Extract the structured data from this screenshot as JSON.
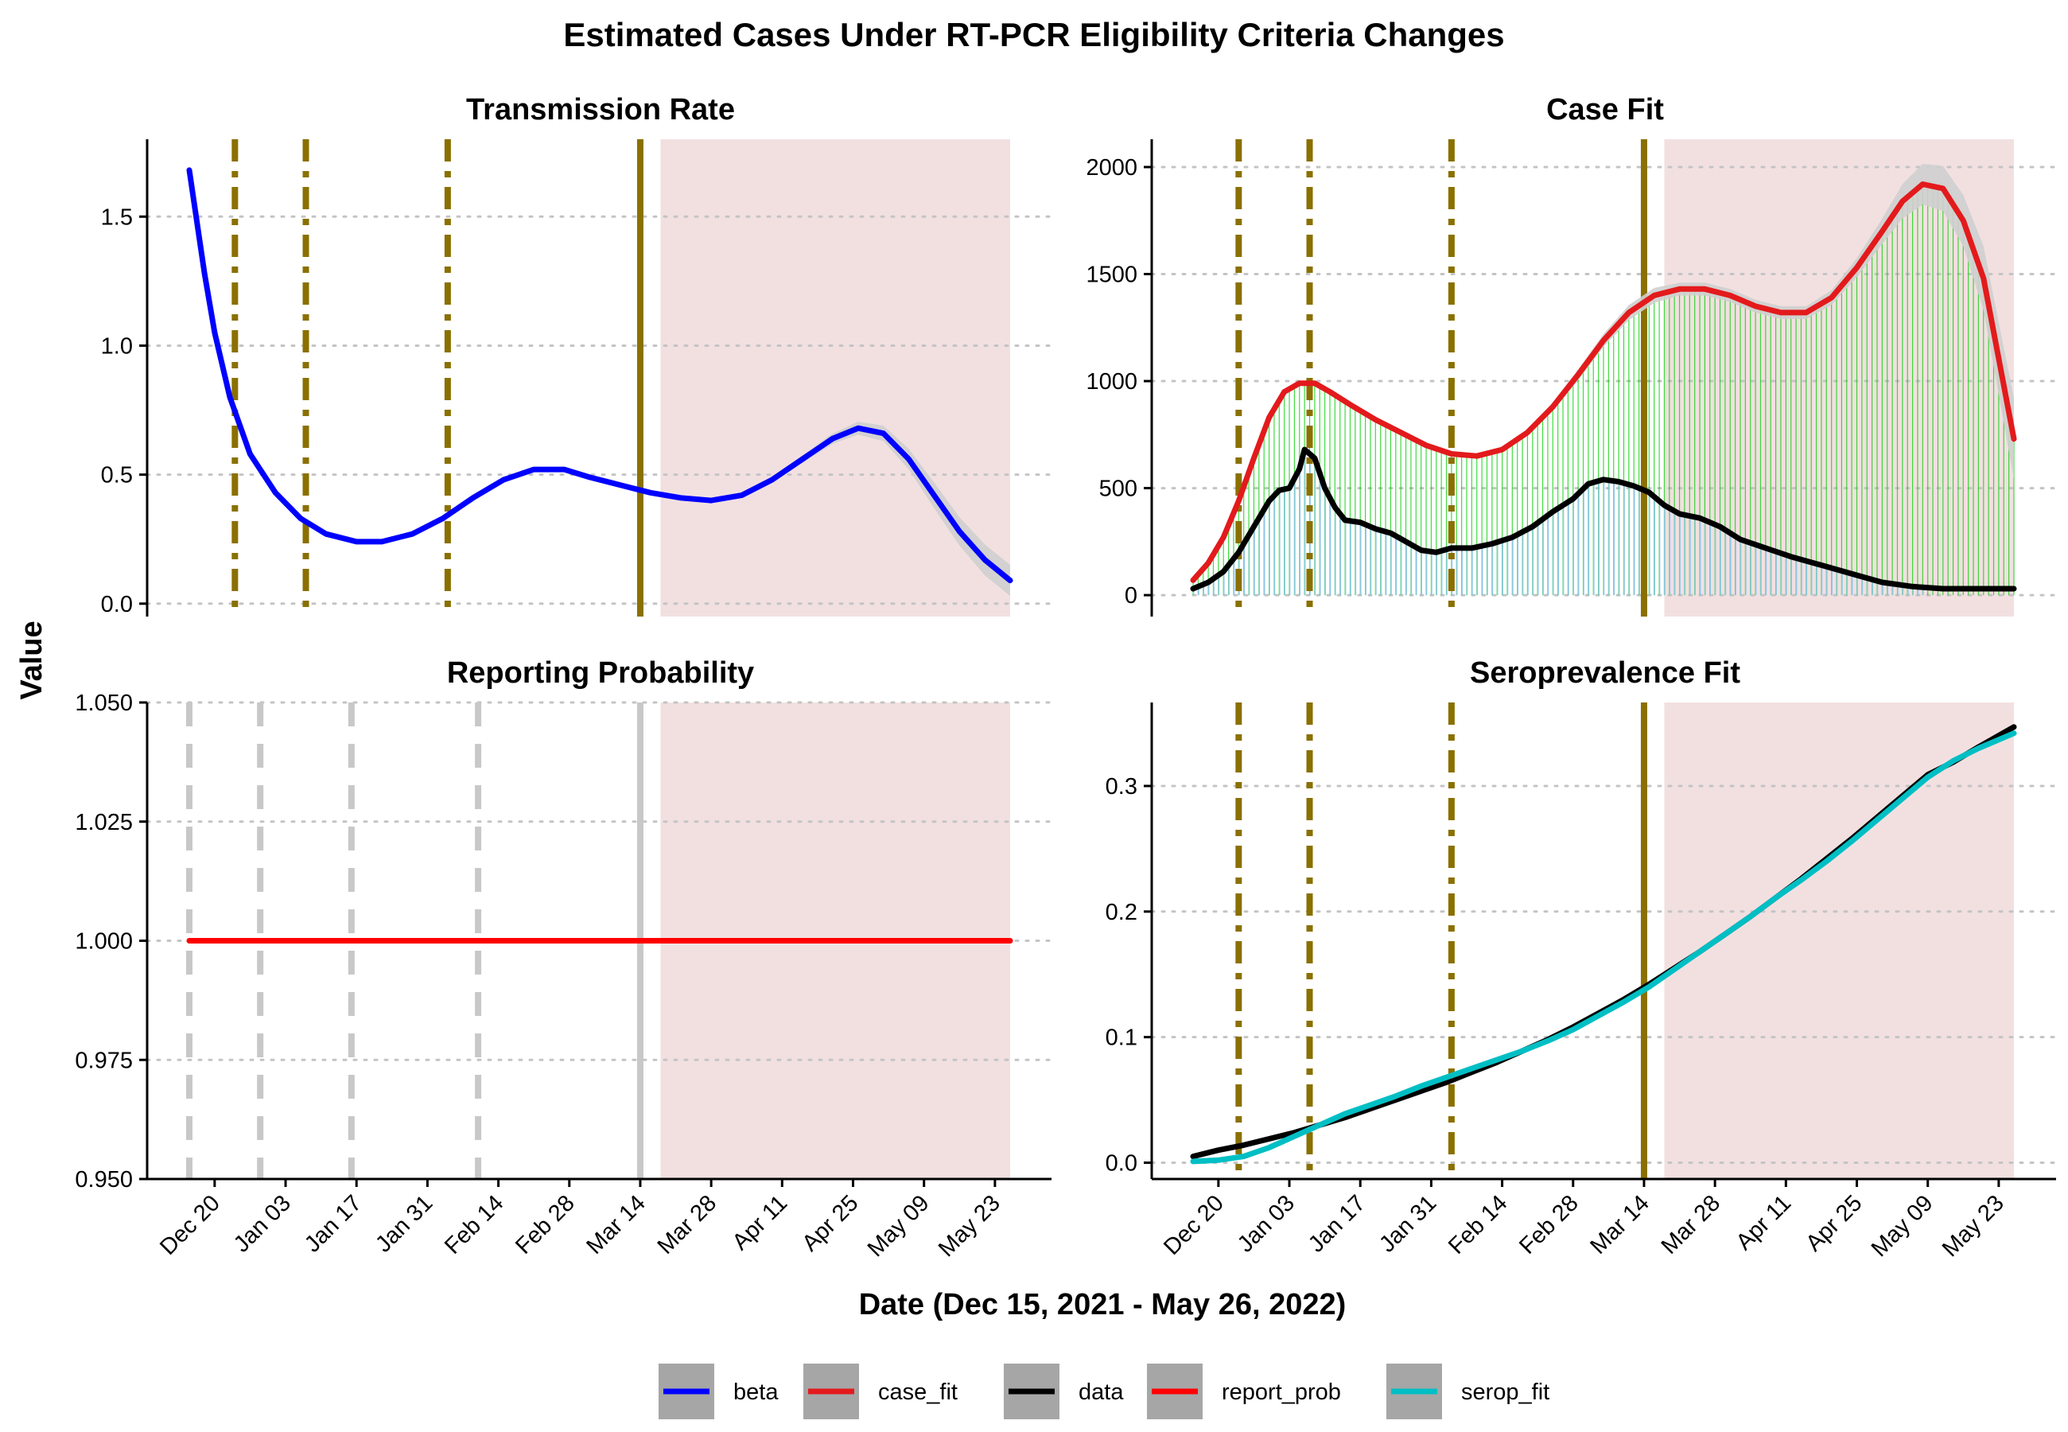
{
  "title": "Estimated Cases Under RT-PCR Eligibility Criteria Changes",
  "xlabel": "Date (Dec 15, 2021 - May 26, 2022)",
  "ylabel": "Value",
  "x_range": [
    "2021-12-15",
    "2022-05-26"
  ],
  "x_ticks": [
    "Dec 20",
    "Jan 03",
    "Jan 17",
    "Jan 31",
    "Feb 14",
    "Feb 28",
    "Mar 14",
    "Mar 28",
    "Apr 11",
    "Apr 25",
    "May 09",
    "May 23"
  ],
  "x_tick_dates": [
    "2021-12-20",
    "2022-01-03",
    "2022-01-17",
    "2022-01-31",
    "2022-02-14",
    "2022-02-28",
    "2022-03-14",
    "2022-03-28",
    "2022-04-11",
    "2022-04-25",
    "2022-05-09",
    "2022-05-23"
  ],
  "shaded_region": {
    "start": "2022-03-18",
    "end": "2022-05-26",
    "color": "#f2e0e1"
  },
  "policy_lines": {
    "dashdot_dates": [
      "2021-12-24",
      "2022-01-07",
      "2022-02-04"
    ],
    "solid_date": "2022-03-14",
    "color": "#8a7000"
  },
  "legend": [
    {
      "label": "beta",
      "color": "#0000ff"
    },
    {
      "label": "case_fit",
      "color": "#e31a1c"
    },
    {
      "label": "data",
      "color": "#000000"
    },
    {
      "label": "report_prob",
      "color": "#ff0000"
    },
    {
      "label": "serop_fit",
      "color": "#00bfc4"
    }
  ],
  "chart_data": [
    {
      "type": "line",
      "panel_title": "Transmission Rate",
      "series_name": "beta",
      "ylim": [
        -0.05,
        1.8
      ],
      "y_ticks": [
        "0.0",
        "0.5",
        "1.0",
        "1.5"
      ],
      "x": [
        "2021-12-15",
        "2021-12-18",
        "2021-12-20",
        "2021-12-23",
        "2021-12-27",
        "2022-01-01",
        "2022-01-06",
        "2022-01-11",
        "2022-01-17",
        "2022-01-22",
        "2022-01-28",
        "2022-02-03",
        "2022-02-09",
        "2022-02-15",
        "2022-02-21",
        "2022-02-27",
        "2022-03-04",
        "2022-03-10",
        "2022-03-16",
        "2022-03-22",
        "2022-03-28",
        "2022-04-03",
        "2022-04-09",
        "2022-04-15",
        "2022-04-21",
        "2022-04-26",
        "2022-05-01",
        "2022-05-06",
        "2022-05-11",
        "2022-05-16",
        "2022-05-21",
        "2022-05-26"
      ],
      "y": [
        1.68,
        1.28,
        1.05,
        0.8,
        0.58,
        0.43,
        0.33,
        0.27,
        0.24,
        0.24,
        0.27,
        0.33,
        0.41,
        0.48,
        0.52,
        0.52,
        0.49,
        0.46,
        0.43,
        0.41,
        0.4,
        0.42,
        0.48,
        0.56,
        0.64,
        0.68,
        0.66,
        0.56,
        0.42,
        0.28,
        0.17,
        0.09
      ],
      "band_width": [
        0,
        0,
        0,
        0,
        0,
        0,
        0,
        0,
        0,
        0,
        0,
        0,
        0,
        0,
        0.005,
        0.01,
        0.01,
        0.01,
        0.01,
        0.01,
        0.01,
        0.01,
        0.01,
        0.015,
        0.02,
        0.025,
        0.03,
        0.04,
        0.05,
        0.055,
        0.06,
        0.06
      ]
    },
    {
      "type": "line",
      "panel_title": "Case Fit",
      "series_names": [
        "case_fit",
        "data"
      ],
      "ylim": [
        -100,
        2130
      ],
      "y_ticks": [
        "0",
        "500",
        "1000",
        "1500",
        "2000"
      ],
      "fit_x": [
        "2021-12-15",
        "2021-12-18",
        "2021-12-21",
        "2021-12-24",
        "2021-12-27",
        "2021-12-30",
        "2022-01-02",
        "2022-01-05",
        "2022-01-08",
        "2022-01-11",
        "2022-01-15",
        "2022-01-20",
        "2022-01-25",
        "2022-01-30",
        "2022-02-04",
        "2022-02-09",
        "2022-02-14",
        "2022-02-19",
        "2022-02-24",
        "2022-03-01",
        "2022-03-06",
        "2022-03-11",
        "2022-03-16",
        "2022-03-21",
        "2022-03-26",
        "2022-03-31",
        "2022-04-05",
        "2022-04-10",
        "2022-04-15",
        "2022-04-20",
        "2022-04-25",
        "2022-04-30",
        "2022-05-04",
        "2022-05-08",
        "2022-05-12",
        "2022-05-16",
        "2022-05-20",
        "2022-05-26"
      ],
      "fit_y": [
        70,
        150,
        270,
        440,
        640,
        830,
        950,
        990,
        990,
        950,
        890,
        820,
        760,
        700,
        660,
        650,
        680,
        760,
        880,
        1030,
        1190,
        1320,
        1400,
        1430,
        1430,
        1400,
        1350,
        1320,
        1320,
        1390,
        1530,
        1700,
        1840,
        1920,
        1900,
        1750,
        1480,
        730
      ],
      "fit_band_width": [
        0,
        0,
        0,
        0,
        5,
        10,
        10,
        10,
        10,
        10,
        10,
        10,
        10,
        10,
        10,
        10,
        10,
        15,
        20,
        25,
        30,
        35,
        35,
        30,
        30,
        30,
        30,
        30,
        30,
        35,
        45,
        60,
        80,
        95,
        105,
        120,
        150,
        190
      ],
      "data_x": [
        "2021-12-15",
        "2021-12-18",
        "2021-12-21",
        "2021-12-24",
        "2021-12-27",
        "2021-12-30",
        "2022-01-01",
        "2022-01-03",
        "2022-01-05",
        "2022-01-06",
        "2022-01-08",
        "2022-01-10",
        "2022-01-12",
        "2022-01-14",
        "2022-01-17",
        "2022-01-20",
        "2022-01-23",
        "2022-01-26",
        "2022-01-29",
        "2022-02-01",
        "2022-02-04",
        "2022-02-08",
        "2022-02-12",
        "2022-02-16",
        "2022-02-20",
        "2022-02-24",
        "2022-02-28",
        "2022-03-03",
        "2022-03-06",
        "2022-03-09",
        "2022-03-12",
        "2022-03-15",
        "2022-03-18",
        "2022-03-21",
        "2022-03-25",
        "2022-03-29",
        "2022-04-02",
        "2022-04-07",
        "2022-04-12",
        "2022-04-18",
        "2022-04-24",
        "2022-04-30",
        "2022-05-06",
        "2022-05-12",
        "2022-05-18",
        "2022-05-26"
      ],
      "data_y": [
        30,
        60,
        110,
        200,
        320,
        440,
        490,
        500,
        590,
        680,
        640,
        500,
        410,
        350,
        340,
        310,
        290,
        250,
        210,
        200,
        220,
        220,
        240,
        270,
        320,
        390,
        450,
        520,
        540,
        530,
        510,
        480,
        420,
        380,
        360,
        320,
        260,
        220,
        180,
        140,
        100,
        60,
        40,
        30,
        30,
        30
      ],
      "total_bar_color": "#00d000",
      "pcr_bar_color": "#8fc6e6",
      "pcr_bar_end": "2022-05-08"
    },
    {
      "type": "line",
      "panel_title": "Reporting Probability",
      "series_name": "report_prob",
      "ylim": [
        0.95,
        1.05
      ],
      "y_ticks": [
        "0.950",
        "0.975",
        "1.000",
        "1.025",
        "1.050"
      ],
      "x": [
        "2021-12-15",
        "2022-05-26"
      ],
      "y": [
        1.0,
        1.0
      ],
      "grey_dash_dates": [
        "2021-12-15",
        "2021-12-29",
        "2022-01-16",
        "2022-02-10"
      ],
      "grey_solid_date": "2022-03-14",
      "grey_color": "#c8c8c8"
    },
    {
      "type": "line",
      "panel_title": "Seroprevalence Fit",
      "series_names": [
        "data",
        "serop_fit"
      ],
      "ylim": [
        -0.013,
        0.3665
      ],
      "y_ticks": [
        "0.0",
        "0.1",
        "0.2",
        "0.3"
      ],
      "x": [
        "2021-12-15",
        "2021-12-20",
        "2021-12-25",
        "2021-12-30",
        "2022-01-04",
        "2022-01-09",
        "2022-01-14",
        "2022-01-19",
        "2022-01-24",
        "2022-01-29",
        "2022-02-03",
        "2022-02-08",
        "2022-02-13",
        "2022-02-18",
        "2022-02-23",
        "2022-02-28",
        "2022-03-05",
        "2022-03-10",
        "2022-03-15",
        "2022-03-20",
        "2022-03-25",
        "2022-03-30",
        "2022-04-04",
        "2022-04-09",
        "2022-04-14",
        "2022-04-19",
        "2022-04-24",
        "2022-04-29",
        "2022-05-04",
        "2022-05-09",
        "2022-05-14",
        "2022-05-19",
        "2022-05-26"
      ],
      "data_y": [
        0.005,
        0.01,
        0.014,
        0.019,
        0.024,
        0.03,
        0.036,
        0.043,
        0.05,
        0.057,
        0.064,
        0.072,
        0.08,
        0.089,
        0.098,
        0.108,
        0.119,
        0.13,
        0.142,
        0.155,
        0.168,
        0.182,
        0.196,
        0.211,
        0.226,
        0.242,
        0.258,
        0.275,
        0.292,
        0.309,
        0.319,
        0.331,
        0.347
      ],
      "fit_y": [
        0.001,
        0.002,
        0.005,
        0.012,
        0.021,
        0.03,
        0.039,
        0.046,
        0.053,
        0.061,
        0.068,
        0.075,
        0.082,
        0.089,
        0.097,
        0.106,
        0.117,
        0.128,
        0.14,
        0.154,
        0.168,
        0.182,
        0.196,
        0.211,
        0.225,
        0.24,
        0.256,
        0.273,
        0.29,
        0.307,
        0.32,
        0.33,
        0.342
      ]
    }
  ]
}
